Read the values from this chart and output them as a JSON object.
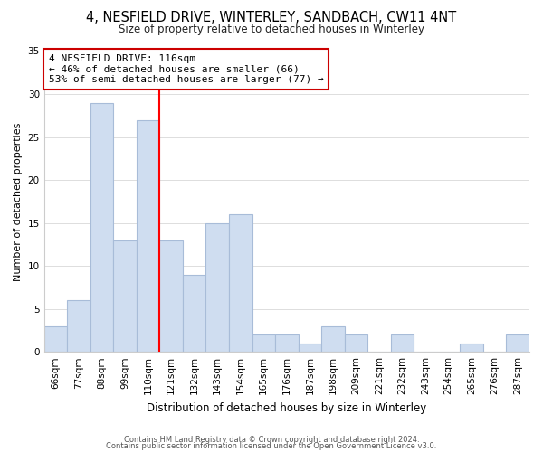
{
  "title": "4, NESFIELD DRIVE, WINTERLEY, SANDBACH, CW11 4NT",
  "subtitle": "Size of property relative to detached houses in Winterley",
  "xlabel": "Distribution of detached houses by size in Winterley",
  "ylabel": "Number of detached properties",
  "bin_labels": [
    "66sqm",
    "77sqm",
    "88sqm",
    "99sqm",
    "110sqm",
    "121sqm",
    "132sqm",
    "143sqm",
    "154sqm",
    "165sqm",
    "176sqm",
    "187sqm",
    "198sqm",
    "209sqm",
    "221sqm",
    "232sqm",
    "243sqm",
    "254sqm",
    "265sqm",
    "276sqm",
    "287sqm"
  ],
  "bar_values": [
    3,
    6,
    29,
    13,
    27,
    13,
    9,
    15,
    16,
    2,
    2,
    1,
    3,
    2,
    0,
    2,
    0,
    0,
    1,
    0,
    2
  ],
  "bar_color": "#cfddf0",
  "bar_edge_color": "#a8bcd8",
  "vline_x": 4.5,
  "annotation_line1": "4 NESFIELD DRIVE: 116sqm",
  "annotation_line2": "← 46% of detached houses are smaller (66)",
  "annotation_line3": "53% of semi-detached houses are larger (77) →",
  "ylim": [
    0,
    35
  ],
  "yticks": [
    0,
    5,
    10,
    15,
    20,
    25,
    30,
    35
  ],
  "footer1": "Contains HM Land Registry data © Crown copyright and database right 2024.",
  "footer2": "Contains public sector information licensed under the Open Government Licence v3.0.",
  "background_color": "#ffffff",
  "grid_color": "#dddddd",
  "title_fontsize": 10.5,
  "subtitle_fontsize": 8.5,
  "xlabel_fontsize": 8.5,
  "ylabel_fontsize": 8.0,
  "footer_fontsize": 6.0,
  "tick_fontsize": 7.5
}
